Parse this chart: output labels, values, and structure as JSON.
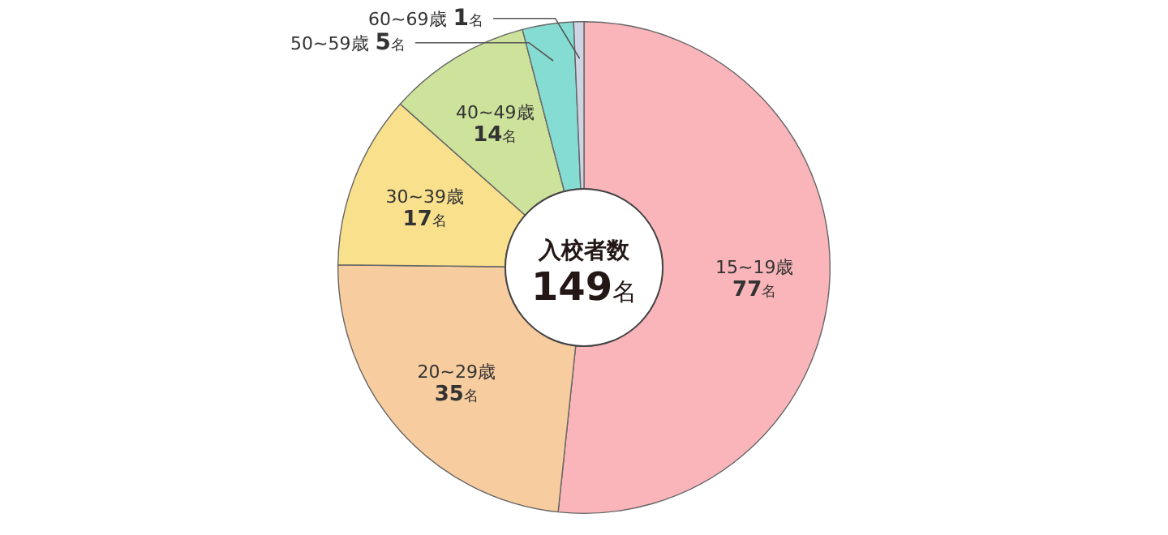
{
  "chart_data": {
    "type": "donut",
    "categories": [
      "15~19歳",
      "20~29歳",
      "30~39歳",
      "40~49歳",
      "50~59歳",
      "60~69歳"
    ],
    "values": [
      77,
      35,
      17,
      14,
      5,
      1
    ],
    "value_labels": [
      "77名",
      "35名",
      "17名",
      "14名",
      "5名",
      "1名"
    ],
    "colors": [
      "#f9b5b9",
      "#f7cc9e",
      "#f8e08d",
      "#cde29b",
      "#85dcd2",
      "#ced4e3"
    ],
    "annotations": [
      "入校者数",
      "149名"
    ],
    "legend": false
  }
}
